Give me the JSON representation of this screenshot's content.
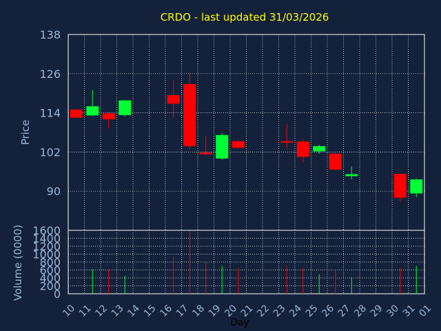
{
  "chart_data": {
    "type": "candlestick",
    "title": "CRDO - last updated 31/03/2026",
    "xlabel": "Day",
    "price_axis": {
      "label": "Price",
      "ticks": [
        "138",
        "126",
        "114",
        "102",
        "90"
      ],
      "ylim": [
        78,
        138
      ]
    },
    "volume_axis": {
      "label": "Volume (0000)",
      "ticks": [
        "1600",
        "1400",
        "1200",
        "1000",
        "800",
        "600",
        "400",
        "200",
        "0"
      ],
      "ylim": [
        0,
        1600
      ]
    },
    "x_ticks": [
      "10",
      "11",
      "12",
      "13",
      "14",
      "15",
      "16",
      "17",
      "18",
      "19",
      "20",
      "21",
      "22",
      "23",
      "24",
      "25",
      "26",
      "27",
      "28",
      "29",
      "30",
      "31",
      "01"
    ],
    "grid": true,
    "colors": {
      "background": "#13213a",
      "up": "#00ff33",
      "down": "#ff0000",
      "title": "#ffff00",
      "axis_text": "#9ab6d8",
      "grid": "#ffffff"
    },
    "candles": [
      {
        "day": "10",
        "open": 115.0,
        "high": 115.0,
        "low": 112.5,
        "close": 112.5,
        "volume": 0
      },
      {
        "day": "11",
        "open": 113.2,
        "high": 121.0,
        "low": 113.0,
        "close": 116.0,
        "volume": 620
      },
      {
        "day": "12",
        "open": 113.8,
        "high": 114.2,
        "low": 109.2,
        "close": 112.0,
        "volume": 620
      },
      {
        "day": "13",
        "open": 113.3,
        "high": 118.0,
        "low": 112.8,
        "close": 117.8,
        "volume": 450
      },
      {
        "day": "16",
        "open": 119.4,
        "high": 124.0,
        "low": 112.5,
        "close": 116.8,
        "volume": 930
      },
      {
        "day": "17",
        "open": 122.8,
        "high": 126.2,
        "low": 103.0,
        "close": 103.8,
        "volume": 1590
      },
      {
        "day": "18",
        "open": 101.8,
        "high": 107.0,
        "low": 101.2,
        "close": 101.3,
        "volume": 780
      },
      {
        "day": "19",
        "open": 100.0,
        "high": 107.8,
        "low": 99.6,
        "close": 107.2,
        "volume": 700
      },
      {
        "day": "20",
        "open": 105.3,
        "high": 105.6,
        "low": 103.0,
        "close": 103.3,
        "volume": 640
      },
      {
        "day": "23",
        "open": 105.3,
        "high": 110.6,
        "low": 103.2,
        "close": 104.9,
        "volume": 690
      },
      {
        "day": "24",
        "open": 105.2,
        "high": 105.7,
        "low": 98.6,
        "close": 100.5,
        "volume": 650
      },
      {
        "day": "25",
        "open": 102.2,
        "high": 104.2,
        "low": 101.4,
        "close": 103.8,
        "volume": 490
      },
      {
        "day": "26",
        "open": 101.5,
        "high": 101.7,
        "low": 96.3,
        "close": 96.6,
        "volume": 580
      },
      {
        "day": "27",
        "open": 94.6,
        "high": 97.6,
        "low": 93.6,
        "close": 95.2,
        "volume": 420
      },
      {
        "day": "30",
        "open": 95.3,
        "high": 95.3,
        "low": 86.8,
        "close": 88.0,
        "volume": 650
      },
      {
        "day": "31",
        "open": 89.3,
        "high": 93.8,
        "low": 88.2,
        "close": 93.6,
        "volume": 700
      }
    ]
  }
}
